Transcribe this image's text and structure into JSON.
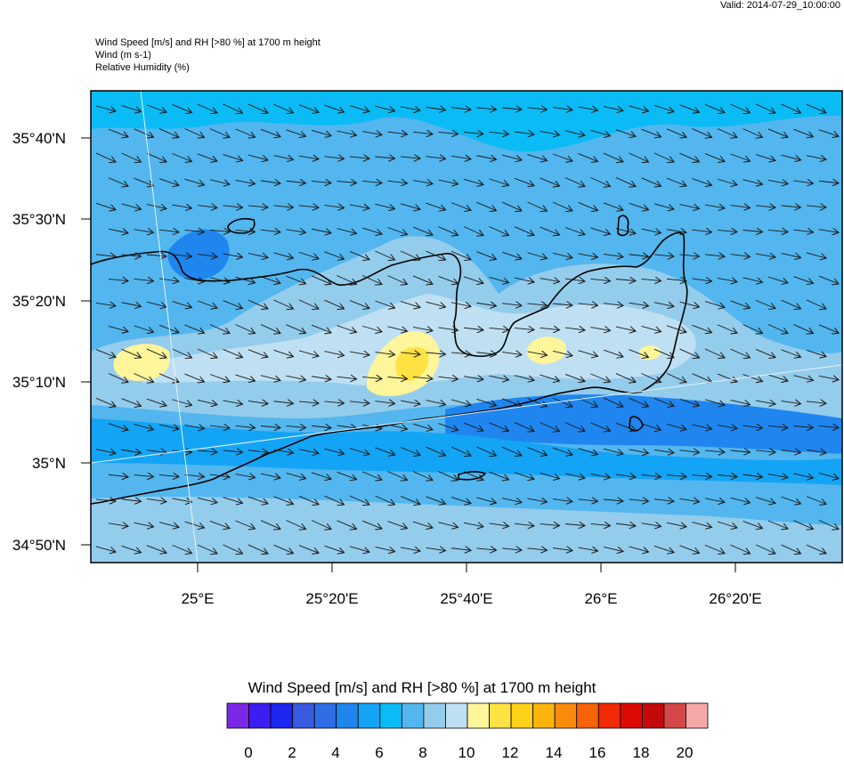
{
  "valid": "Valid: 2014-07-29_10:00:00",
  "title_lines": [
    "Wind Speed [m/s] and RH [>80 %] at 1700 m height",
    "Wind   (m s-1)",
    "Relative Humidity   (%)"
  ],
  "lat_labels": [
    "35°40'N",
    "35°30'N",
    "35°20'N",
    "35°10'N",
    "35°N",
    "34°50'N"
  ],
  "lon_labels": [
    "25°E",
    "25°20'E",
    "25°40'E",
    "26°E",
    "26°20'E"
  ],
  "legend": {
    "title": "Wind Speed [m/s] and RH [>80 %] at 1700 m height",
    "tick_labels": [
      "0",
      "2",
      "4",
      "6",
      "8",
      "10",
      "12",
      "14",
      "16",
      "18",
      "20"
    ],
    "colors": [
      "#7b28e6",
      "#3d1df0",
      "#1c26ee",
      "#3a5ae0",
      "#2f6de6",
      "#1f86f0",
      "#14a4f5",
      "#0bbbf5",
      "#53b6ee",
      "#94ccec",
      "#bfe0f2",
      "#fff59a",
      "#ffe243",
      "#ffd21a",
      "#fcb40c",
      "#fa8a0a",
      "#f76408",
      "#f22a05",
      "#dd0a04",
      "#c4090a",
      "#d64848",
      "#f6a7a7"
    ]
  },
  "colors": {
    "land_outline": "#000000",
    "arrow": "#1a1a1a",
    "sea_light": "#94ccec",
    "sea_mid": "#53b6ee",
    "sea_bright": "#0bbbf5"
  }
}
